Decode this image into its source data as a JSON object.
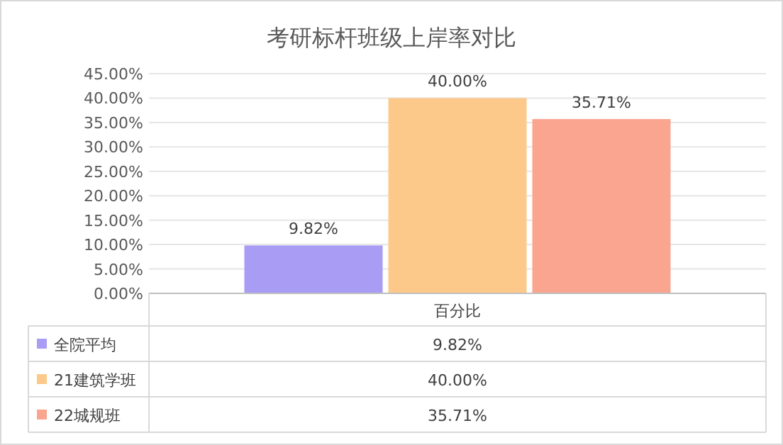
{
  "chart_data": {
    "type": "bar",
    "title": "考研标杆班级上岸率对比",
    "categories": [
      "百分比"
    ],
    "series": [
      {
        "name": "全院平均",
        "color": "#a99cf5",
        "values": [
          9.82
        ],
        "value_labels": [
          "9.82%"
        ]
      },
      {
        "name": "21建筑学班",
        "color": "#fcc98a",
        "values": [
          40.0
        ],
        "value_labels": [
          "40.00%"
        ]
      },
      {
        "name": "22城规班",
        "color": "#f9a58f",
        "values": [
          35.71
        ],
        "value_labels": [
          "35.71%"
        ]
      }
    ],
    "ylim": [
      0,
      45
    ],
    "yticks": [
      {
        "value": 0,
        "label": "0.00%"
      },
      {
        "value": 5,
        "label": "5.00%"
      },
      {
        "value": 10,
        "label": "10.00%"
      },
      {
        "value": 15,
        "label": "15.00%"
      },
      {
        "value": 20,
        "label": "20.00%"
      },
      {
        "value": 25,
        "label": "25.00%"
      },
      {
        "value": 30,
        "label": "30.00%"
      },
      {
        "value": 35,
        "label": "35.00%"
      },
      {
        "value": 40,
        "label": "40.00%"
      },
      {
        "value": 45,
        "label": "45.00%"
      }
    ],
    "grid": "y",
    "legend": "bottom"
  }
}
